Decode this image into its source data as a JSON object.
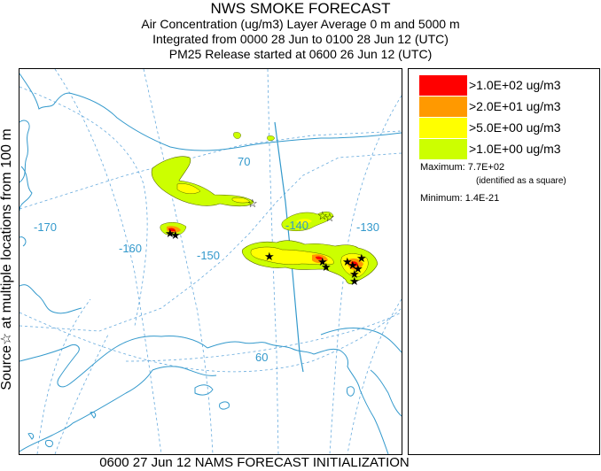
{
  "header": {
    "title": "NWS SMOKE FORECAST",
    "line2": "Air Concentration (ug/m3) Layer Average    0 m and  5000 m",
    "line3": "Integrated from 0000 28 Jun to 0100 28 Jun 12 (UTC)",
    "line4": "PM25 Release started at 0600 26 Jun 12 (UTC)"
  },
  "side_label": "Source☆ at multiple locations  from   100 m",
  "footer": "0600 27 Jun 12 NAMS FORECAST INITIALIZATION",
  "map": {
    "graticule_labels": {
      "lon_170": "-170",
      "lon_160": "-160",
      "lon_150": "-150",
      "lon_140": "-140",
      "lon_130": "-130",
      "lat_70": "70",
      "lat_60": "60"
    },
    "colors": {
      "coast": "#3399cc",
      "graticule": "#66aadd",
      "level1": "#ccff00",
      "level2": "#ffff00",
      "level3": "#ff9900",
      "level4": "#ff0000"
    }
  },
  "legend": {
    "levels": [
      {
        "label": ">1.0E+02 ug/m3",
        "color": "#ff0000"
      },
      {
        "label": ">2.0E+01 ug/m3",
        "color": "#ff9900"
      },
      {
        "label": ">5.0E+00 ug/m3",
        "color": "#ffff00"
      },
      {
        "label": ">1.0E+00 ug/m3",
        "color": "#ccff00"
      }
    ],
    "maximum": "Maximum: 7.7E+02",
    "maximum_note": "(identified as a square)",
    "minimum": "Minimum: 1.4E-21"
  }
}
